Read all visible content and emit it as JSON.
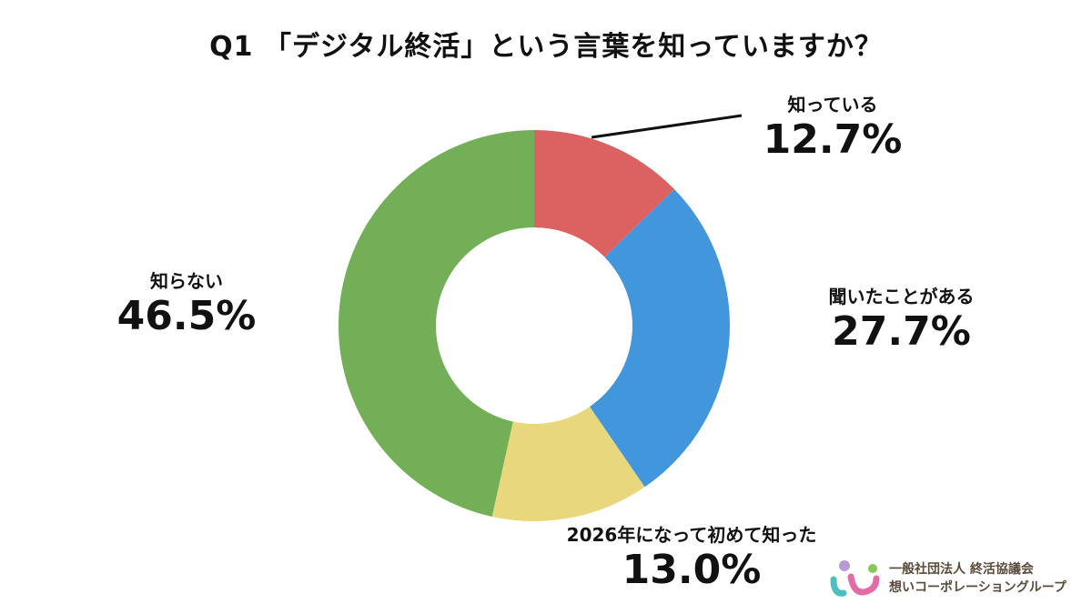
{
  "title": "Q1 「デジタル終活」という言葉を知っていますか？",
  "chart_data": {
    "type": "pie",
    "title": "Q1 「デジタル終活」という言葉を知っていますか？",
    "donut": true,
    "start": "top, clockwise",
    "slices": [
      {
        "label": "知っている",
        "value": 12.7,
        "display": "12.7%",
        "color": "#DC6261"
      },
      {
        "label": "聞いたことがある",
        "value": 27.7,
        "display": "27.7%",
        "color": "#4296DB"
      },
      {
        "label": "2026年になって初めて知った",
        "value": 13.0,
        "display": "13.0%",
        "color": "#E8D77C"
      },
      {
        "label": "知らない",
        "value": 46.5,
        "display": "46.5%",
        "color": "#72AF57"
      }
    ]
  },
  "logo": {
    "line1": "一般社団法人 終活協議会",
    "line2": "想いコーポレーショングループ"
  }
}
